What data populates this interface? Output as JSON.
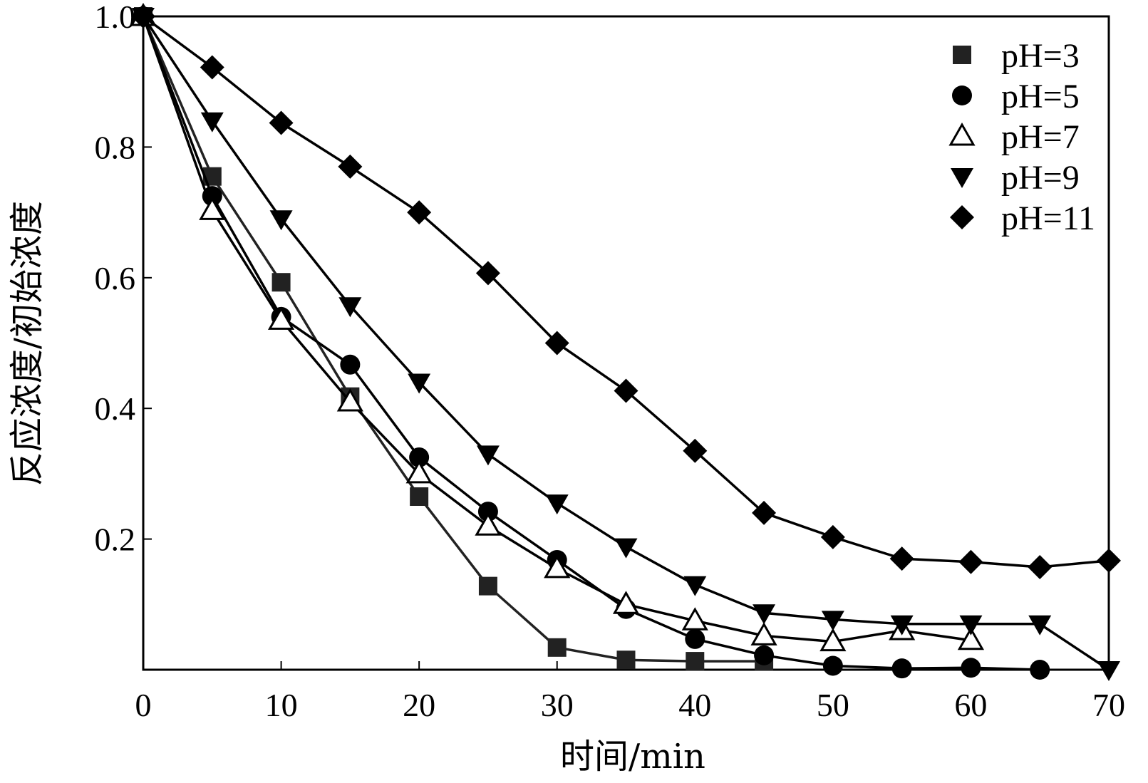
{
  "chart_data": {
    "type": "line",
    "xlabel": "时间/min",
    "ylabel": "反应浓度/初始浓度",
    "xlim": [
      0,
      70
    ],
    "ylim": [
      0,
      1.0
    ],
    "xticks": [
      0,
      10,
      20,
      30,
      40,
      50,
      60,
      70
    ],
    "xtick_labels": [
      "0",
      "10",
      "20",
      "30",
      "40",
      "50",
      "60",
      "70"
    ],
    "yticks": [
      0.2,
      0.4,
      0.6,
      0.8,
      1.0
    ],
    "ytick_labels": [
      "0.2",
      "0.4",
      "0.6",
      "0.8",
      "1.0"
    ],
    "grid": false,
    "legend_position": "top-right",
    "series": [
      {
        "name": "pH=3",
        "marker": "square",
        "color": "#222222",
        "x": [
          0,
          5,
          10,
          15,
          20,
          25,
          30,
          35,
          40,
          45
        ],
        "y": [
          1.0,
          0.755,
          0.593,
          0.418,
          0.265,
          0.128,
          0.034,
          0.015,
          0.013,
          0.013
        ]
      },
      {
        "name": "pH=5",
        "marker": "circle",
        "color": "#000000",
        "x": [
          0,
          5,
          10,
          15,
          20,
          25,
          30,
          35,
          40,
          45,
          50,
          55,
          60,
          65
        ],
        "y": [
          1.0,
          0.725,
          0.54,
          0.467,
          0.325,
          0.242,
          0.168,
          0.093,
          0.047,
          0.022,
          0.006,
          0.002,
          0.003,
          0.0
        ]
      },
      {
        "name": "pH=7",
        "marker": "triangle-up-open",
        "color": "#000000",
        "x": [
          0,
          5,
          10,
          15,
          20,
          25,
          30,
          35,
          40,
          45,
          50,
          55,
          60
        ],
        "y": [
          1.0,
          0.703,
          0.535,
          0.41,
          0.3,
          0.22,
          0.155,
          0.1,
          0.075,
          0.052,
          0.043,
          0.06,
          0.045
        ]
      },
      {
        "name": "pH=9",
        "marker": "triangle-down",
        "color": "#000000",
        "x": [
          0,
          5,
          10,
          15,
          20,
          25,
          30,
          35,
          40,
          45,
          50,
          55,
          60,
          65,
          70
        ],
        "y": [
          1.0,
          0.84,
          0.69,
          0.557,
          0.44,
          0.33,
          0.255,
          0.188,
          0.13,
          0.087,
          0.077,
          0.07,
          0.07,
          0.07,
          0.0
        ]
      },
      {
        "name": "pH=11",
        "marker": "diamond",
        "color": "#000000",
        "x": [
          0,
          5,
          10,
          15,
          20,
          25,
          30,
          35,
          40,
          45,
          50,
          55,
          60,
          65,
          70
        ],
        "y": [
          1.0,
          0.922,
          0.837,
          0.77,
          0.7,
          0.607,
          0.5,
          0.427,
          0.335,
          0.24,
          0.203,
          0.17,
          0.165,
          0.157,
          0.167
        ]
      }
    ]
  }
}
